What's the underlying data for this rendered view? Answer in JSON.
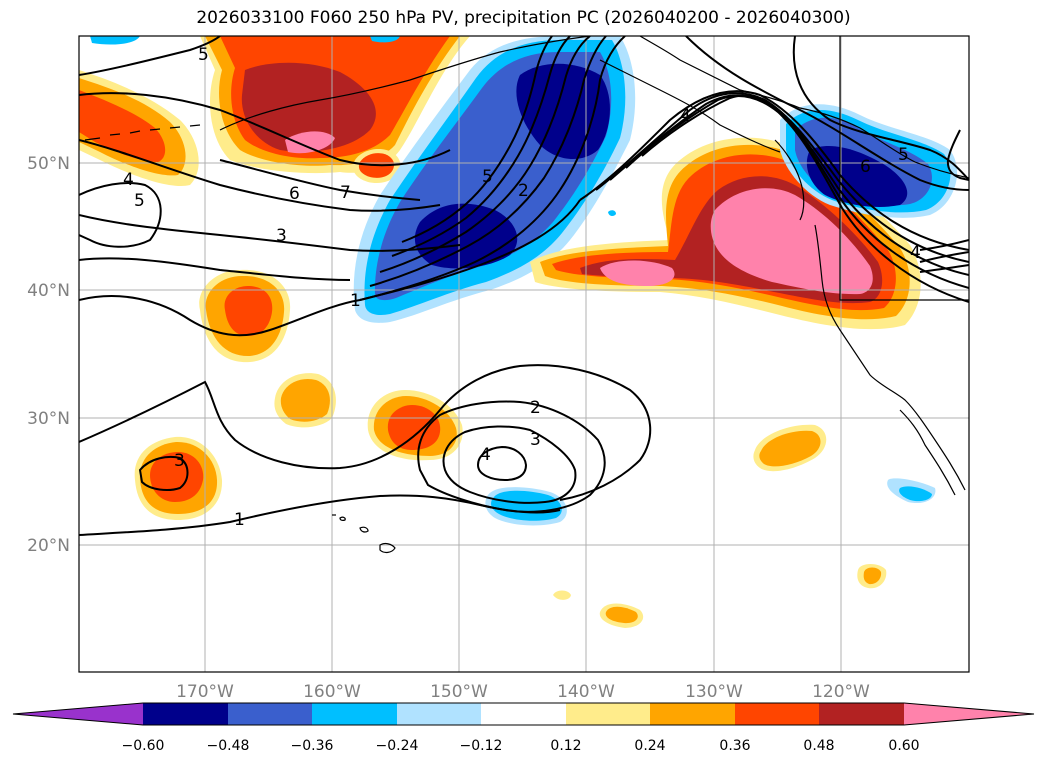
{
  "title": "2026033100 F060 250 hPa PV, precipitation PC (2026040200 - 2026040300)",
  "map": {
    "lon_range": [
      -180,
      -110
    ],
    "lat_range": [
      10,
      60
    ],
    "lat_ticks": [
      "20°N",
      "30°N",
      "40°N",
      "50°N"
    ],
    "lon_ticks": [
      "170°W",
      "160°W",
      "150°W",
      "140°W",
      "130°W",
      "120°W"
    ],
    "grid": true,
    "contour_labels": [
      "5",
      "4",
      "5",
      "6",
      "7",
      "3",
      "1",
      "5",
      "2",
      "4",
      "6",
      "5",
      "4",
      "2",
      "3",
      "4",
      "3",
      "1"
    ]
  },
  "colorbar": {
    "ticks": [
      "−0.60",
      "−0.48",
      "−0.36",
      "−0.24",
      "−0.12",
      "0.12",
      "0.24",
      "0.36",
      "0.48",
      "0.60"
    ],
    "colors": {
      "under": "#9932cc",
      "neg_060": "#00008b",
      "neg_048": "#3a5fcd",
      "neg_036": "#00bfff",
      "neg_024": "#b0e2ff",
      "neutral": "#ffffff",
      "pos_012": "#ffec8b",
      "pos_024": "#ffa500",
      "pos_036": "#ff4500",
      "pos_048": "#b22222",
      "over": "#ff82ab"
    }
  }
}
